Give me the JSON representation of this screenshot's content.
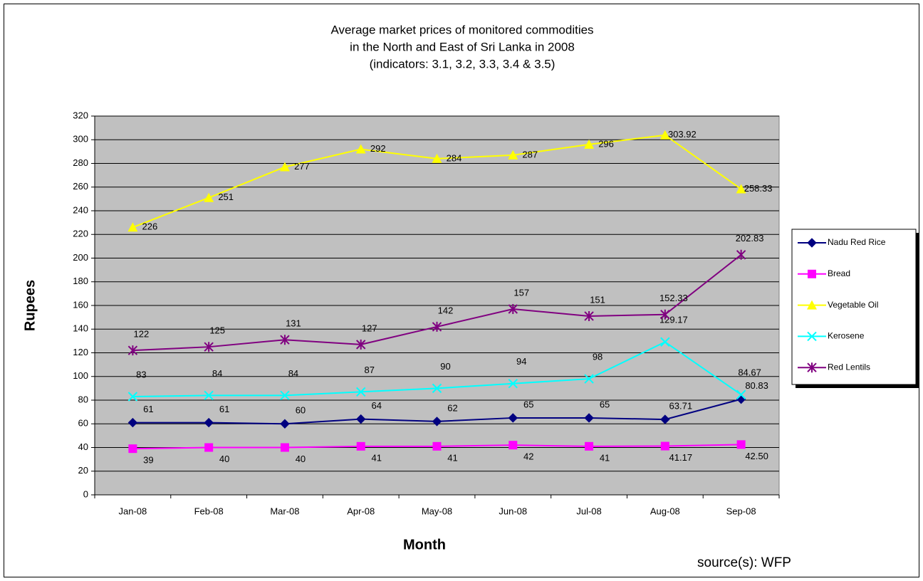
{
  "chart_data": {
    "type": "line",
    "title": [
      "Average market prices of monitored commodities",
      "in the North and East of Sri Lanka in 2008",
      "(indicators: 3.1, 3.2, 3.3, 3.4 & 3.5)"
    ],
    "x_label": "Month",
    "y_label": "Rupees",
    "annotation": "source(s): WFP",
    "categories": [
      "Jan-08",
      "Feb-08",
      "Mar-08",
      "Apr-08",
      "May-08",
      "Jun-08",
      "Jul-08",
      "Aug-08",
      "Sep-08"
    ],
    "series": [
      {
        "name": "Nadu Red Rice",
        "color": "#000080",
        "marker": "diamond",
        "values": [
          61,
          61,
          60,
          64,
          62,
          65,
          65,
          63.71,
          80.83
        ]
      },
      {
        "name": "Bread",
        "color": "#ff00ff",
        "marker": "square",
        "values": [
          39,
          40,
          40,
          41,
          41,
          42,
          41,
          41.17,
          42.5
        ],
        "value_labels": [
          "39",
          "40",
          "40",
          "41",
          "41",
          "42",
          "41",
          "41.17",
          "42.50"
        ]
      },
      {
        "name": "Vegetable Oil",
        "color": "#ffff00",
        "marker": "triangle",
        "values": [
          226,
          251,
          277,
          292,
          284,
          287,
          296,
          303.92,
          258.33
        ]
      },
      {
        "name": "Kerosene",
        "color": "#00ffff",
        "marker": "x",
        "values": [
          83,
          84,
          84,
          87,
          90,
          94,
          98,
          129.17,
          84.67
        ]
      },
      {
        "name": "Red Lentils",
        "color": "#800080",
        "marker": "star",
        "values": [
          122,
          125,
          131,
          127,
          142,
          157,
          151,
          152.33,
          202.83
        ]
      }
    ],
    "ylim": [
      0,
      320
    ],
    "yticks": [
      0,
      20,
      40,
      60,
      80,
      100,
      120,
      140,
      160,
      180,
      200,
      220,
      240,
      260,
      280,
      300,
      320
    ],
    "grid": true,
    "legend": "right",
    "plot_background": "#c0c0c0"
  }
}
